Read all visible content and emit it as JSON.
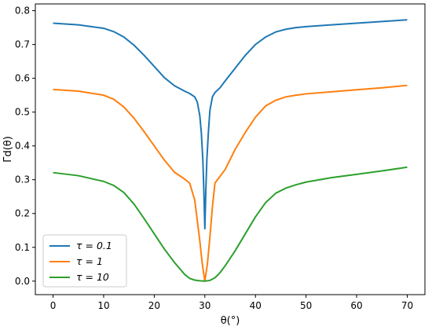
{
  "chart_data": {
    "type": "line",
    "title": "",
    "xlabel": "θ(°)",
    "ylabel": "Γd(θ)",
    "xlim": [
      -3.5,
      73.5
    ],
    "ylim": [
      -0.04,
      0.82
    ],
    "xticks": [
      0,
      10,
      20,
      30,
      40,
      50,
      60,
      70
    ],
    "yticks": [
      0.0,
      0.1,
      0.2,
      0.3,
      0.4,
      0.5,
      0.6,
      0.7,
      0.8
    ],
    "xtick_labels": [
      "0",
      "10",
      "20",
      "30",
      "40",
      "50",
      "60",
      "70"
    ],
    "ytick_labels": [
      "0.0",
      "0.1",
      "0.2",
      "0.3",
      "0.4",
      "0.5",
      "0.6",
      "0.7",
      "0.8"
    ],
    "grid": false,
    "legend_position": "lower-left",
    "series": [
      {
        "name": "τ = 0.1",
        "color": "#1f77b4",
        "x": [
          0,
          5,
          10,
          12,
          14,
          16,
          18,
          20,
          22,
          24,
          26,
          27,
          28,
          28.5,
          29,
          29.3,
          29.6,
          29.8,
          30,
          30.2,
          30.4,
          30.7,
          31,
          31.5,
          32,
          33,
          34,
          36,
          38,
          40,
          42,
          44,
          46,
          48,
          50,
          55,
          60,
          65,
          70
        ],
        "y": [
          0.763,
          0.758,
          0.748,
          0.738,
          0.722,
          0.698,
          0.668,
          0.635,
          0.602,
          0.578,
          0.562,
          0.555,
          0.545,
          0.53,
          0.49,
          0.44,
          0.36,
          0.27,
          0.155,
          0.27,
          0.36,
          0.44,
          0.505,
          0.545,
          0.558,
          0.572,
          0.592,
          0.63,
          0.668,
          0.7,
          0.722,
          0.737,
          0.745,
          0.75,
          0.753,
          0.758,
          0.763,
          0.768,
          0.773
        ]
      },
      {
        "name": "τ = 1",
        "color": "#ff7f0e",
        "x": [
          0,
          5,
          10,
          12,
          14,
          16,
          18,
          20,
          22,
          24,
          26,
          27,
          28,
          28.5,
          29,
          29.5,
          30,
          30.5,
          31,
          31.5,
          32,
          33,
          34,
          36,
          38,
          40,
          42,
          44,
          46,
          48,
          50,
          55,
          60,
          65,
          70
        ],
        "y": [
          0.567,
          0.562,
          0.55,
          0.538,
          0.515,
          0.482,
          0.442,
          0.4,
          0.358,
          0.322,
          0.302,
          0.29,
          0.24,
          0.18,
          0.12,
          0.05,
          0.0,
          0.05,
          0.13,
          0.22,
          0.29,
          0.31,
          0.33,
          0.39,
          0.44,
          0.485,
          0.518,
          0.535,
          0.545,
          0.55,
          0.554,
          0.56,
          0.566,
          0.572,
          0.579
        ]
      },
      {
        "name": "τ = 10",
        "color": "#2ca02c",
        "x": [
          0,
          5,
          10,
          12,
          14,
          16,
          18,
          20,
          22,
          24,
          26,
          27,
          28,
          29,
          30,
          31,
          32,
          33,
          34,
          36,
          38,
          40,
          42,
          44,
          46,
          48,
          50,
          55,
          60,
          65,
          70
        ],
        "y": [
          0.321,
          0.312,
          0.295,
          0.283,
          0.262,
          0.228,
          0.185,
          0.14,
          0.095,
          0.055,
          0.02,
          0.008,
          0.003,
          0.001,
          0.0,
          0.002,
          0.01,
          0.025,
          0.045,
          0.09,
          0.14,
          0.19,
          0.232,
          0.26,
          0.275,
          0.285,
          0.293,
          0.306,
          0.316,
          0.326,
          0.337
        ]
      }
    ]
  }
}
